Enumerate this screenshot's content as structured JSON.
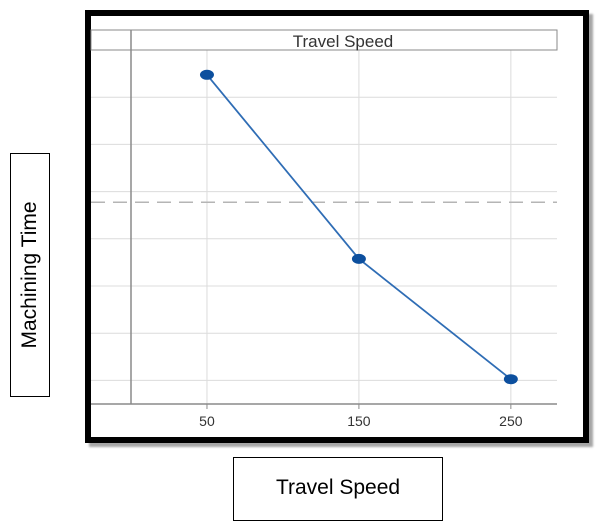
{
  "chart_data": {
    "type": "line",
    "panel_title": "Travel Speed",
    "xlabel": "Travel Speed",
    "ylabel": "Machining Time",
    "x": [
      50,
      150,
      250
    ],
    "x_tick_labels": [
      "50",
      "150",
      "250"
    ],
    "xlim": [
      0,
      300
    ],
    "series": [
      {
        "values": [
          0.93,
          0.41,
          0.07
        ]
      }
    ],
    "ylim": [
      0,
      1
    ],
    "reference_line": 0.57,
    "grid": true,
    "colors": {
      "line": "#2f6db5",
      "marker": "#0c4f9e",
      "grid": "#dcdcdc",
      "reference": "#b5b5b5",
      "axis": "#8a8a8a"
    }
  }
}
